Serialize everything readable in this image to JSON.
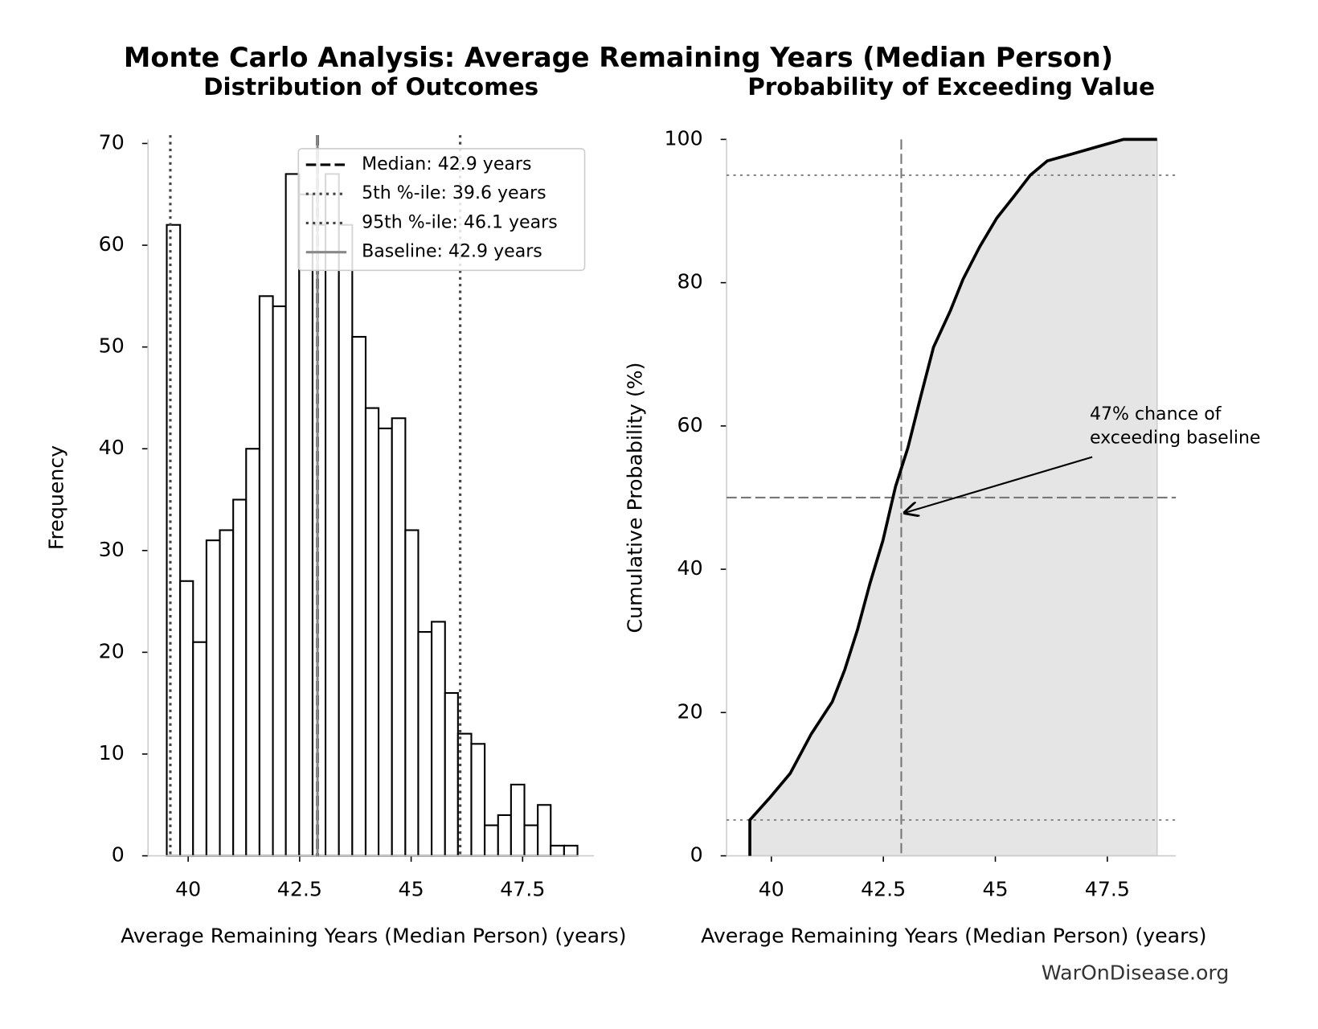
{
  "title": "Monte Carlo Analysis: Average Remaining Years (Median Person)",
  "footer": "WarOnDisease.org",
  "chart_data": [
    {
      "type": "histogram",
      "title": "Distribution of Outcomes",
      "xlabel": "Average Remaining Years (Median Person) (years)",
      "ylabel": "Frequency",
      "bins": [
        39.52,
        39.82,
        40.11,
        40.41,
        40.71,
        41.01,
        41.3,
        41.6,
        41.9,
        42.19,
        42.49,
        42.79,
        43.08,
        43.38,
        43.68,
        43.98,
        44.27,
        44.57,
        44.87,
        45.16,
        45.46,
        45.76,
        46.05,
        46.35,
        46.65,
        46.95,
        47.24,
        47.54,
        47.84,
        48.13,
        48.43,
        48.73
      ],
      "values": [
        62,
        27,
        21,
        31,
        32,
        35,
        40,
        55,
        54,
        67,
        65,
        62,
        67,
        62,
        51,
        44,
        42,
        43,
        32,
        22,
        23,
        16,
        12,
        11,
        3,
        4,
        7,
        3,
        5,
        1,
        1
      ],
      "color": "#ffffff",
      "edgecolor": "#000000",
      "xlim": [
        39.1,
        49.1
      ],
      "ylim": [
        0,
        70.4
      ],
      "xticks": [
        40,
        42.5,
        45,
        47.5
      ],
      "yticks": [
        0,
        10,
        20,
        30,
        40,
        50,
        60,
        70
      ],
      "legend": "upper right",
      "reference_lines": [
        {
          "label": "Median: 42.9 years",
          "value": 42.9,
          "style": "dashed",
          "color": "#000000"
        },
        {
          "label": "5th %-ile: 39.6 years",
          "value": 39.6,
          "style": "dotted",
          "color": "#444444"
        },
        {
          "label": "95th %-ile: 46.1 years",
          "value": 46.1,
          "style": "dotted",
          "color": "#444444"
        },
        {
          "label": "Baseline: 42.9 years",
          "value": 42.9,
          "style": "solid",
          "color": "#888888"
        }
      ]
    },
    {
      "type": "line",
      "title": "Probability of Exceeding Value",
      "xlabel": "Average Remaining Years (Median Person) (years)",
      "ylabel": "Cumulative Probability (%)",
      "x": [
        39.52,
        39.52,
        39.95,
        40.42,
        40.89,
        41.36,
        41.64,
        41.92,
        42.2,
        42.49,
        42.77,
        43.05,
        43.33,
        43.62,
        43.99,
        44.28,
        44.65,
        45.03,
        45.41,
        45.78,
        46.16,
        46.73,
        47.29,
        47.86,
        48.61
      ],
      "values": [
        0,
        5,
        8,
        11.5,
        17,
        21.5,
        26,
        31.5,
        38,
        44,
        51.5,
        57,
        64,
        71,
        76,
        80.5,
        85,
        89,
        92,
        95,
        97,
        98,
        99,
        100,
        100
      ],
      "color": "#000000",
      "fill_color": "#e5e5e5",
      "xlim": [
        39.0,
        49.03
      ],
      "ylim": [
        0,
        100
      ],
      "xticks": [
        40,
        42.5,
        45,
        47.5
      ],
      "yticks": [
        0,
        20,
        40,
        60,
        80,
        100
      ],
      "hlines": [
        {
          "value": 5,
          "style": "dotted"
        },
        {
          "value": 95,
          "style": "dotted"
        },
        {
          "value": 50,
          "style": "dashed"
        }
      ],
      "vlines": [
        {
          "value": 42.9,
          "style": "dashed"
        }
      ],
      "annotation": [
        "47% chance of",
        "exceeding baseline"
      ]
    }
  ]
}
